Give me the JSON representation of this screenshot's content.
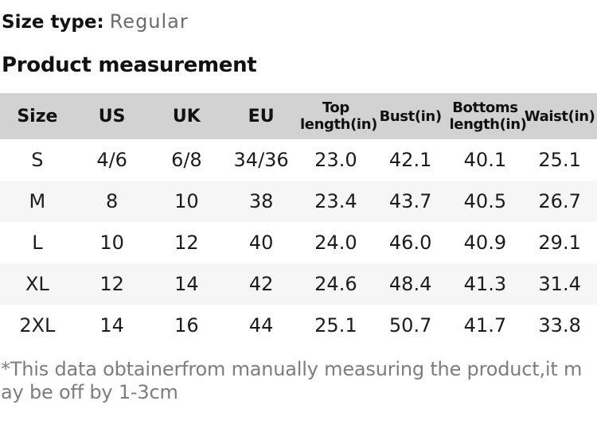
{
  "header": {
    "size_type_label": "Size type:",
    "size_type_value": "Regular",
    "section_title": "Product measurement"
  },
  "table": {
    "columns": [
      {
        "line1": "Size"
      },
      {
        "line1": "US"
      },
      {
        "line1": "UK"
      },
      {
        "line1": "EU"
      },
      {
        "line1": "Top",
        "line2": "length(in)"
      },
      {
        "line1": "Bust(in)"
      },
      {
        "line1": "Bottoms",
        "line2": "length(in)"
      },
      {
        "line1": "Waist(in)"
      }
    ],
    "rows": [
      [
        "S",
        "4/6",
        "6/8",
        "34/36",
        "23.0",
        "42.1",
        "40.1",
        "25.1"
      ],
      [
        "M",
        "8",
        "10",
        "38",
        "23.4",
        "43.7",
        "40.5",
        "26.7"
      ],
      [
        "L",
        "10",
        "12",
        "40",
        "24.0",
        "46.0",
        "40.9",
        "29.1"
      ],
      [
        "XL",
        "12",
        "14",
        "42",
        "24.6",
        "48.4",
        "41.3",
        "31.4"
      ],
      [
        "2XL",
        "14",
        "16",
        "44",
        "25.1",
        "50.7",
        "41.7",
        "33.8"
      ]
    ]
  },
  "footnote": {
    "line1": "*This data obtainerfrom manually measuring the product,it m",
    "line2": "ay be off by 1-3cm"
  },
  "colors": {
    "header_bg": "#d2d2d2",
    "row_alt_bg": "#f6f6f6",
    "text": "#111111",
    "value_gray": "#6b6b6b",
    "footnote_gray": "#7d7d7d"
  }
}
